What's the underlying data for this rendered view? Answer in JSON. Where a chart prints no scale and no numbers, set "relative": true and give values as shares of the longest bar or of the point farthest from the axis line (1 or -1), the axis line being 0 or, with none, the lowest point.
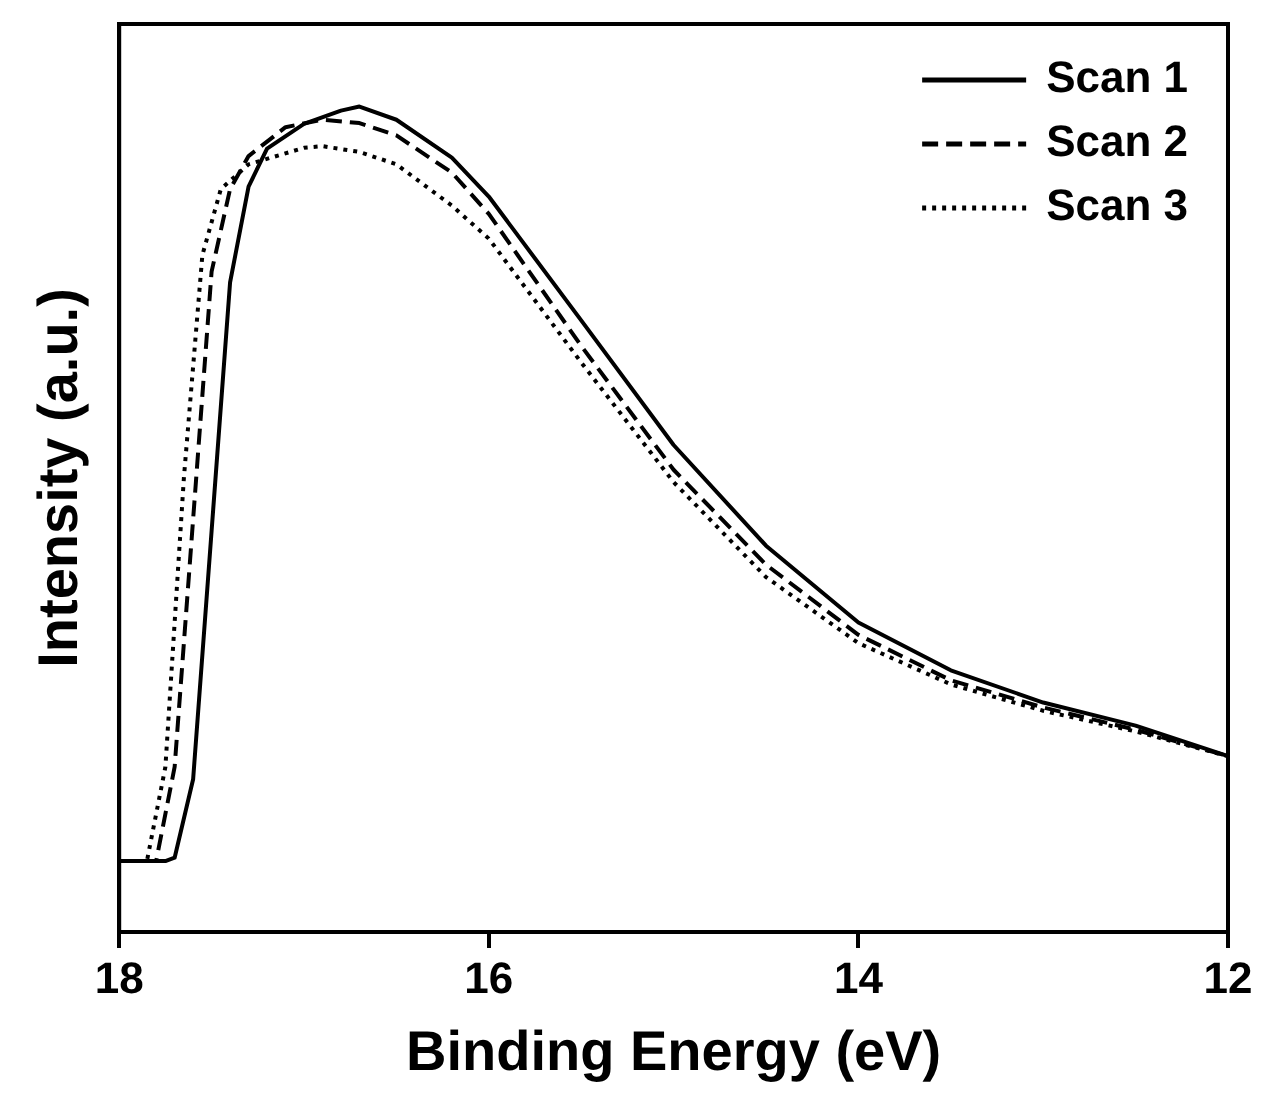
{
  "chart_data": {
    "type": "line",
    "xlabel": "Binding Energy (eV)",
    "ylabel": "Intensity (a.u.)",
    "xlim": [
      18,
      12
    ],
    "xticks": [
      18,
      16,
      14,
      12
    ],
    "relative": true,
    "legend": "top right",
    "grid": false,
    "marker": "none",
    "series": [
      {
        "name": "Scan 1",
        "color": "#000000",
        "line_style": "solid",
        "x": [
          18,
          17.75,
          17.7,
          17.6,
          17.5,
          17.4,
          17.3,
          17.2,
          17,
          16.8,
          16.7,
          16.5,
          16.2,
          16,
          15.5,
          15,
          14.5,
          14,
          13.5,
          13,
          12.5,
          12
        ],
        "values": [
          0.086,
          0.086,
          0.09,
          0.185,
          0.486,
          0.787,
          0.903,
          0.949,
          0.979,
          0.995,
          1.0,
          0.984,
          0.938,
          0.891,
          0.741,
          0.59,
          0.468,
          0.375,
          0.317,
          0.278,
          0.25,
          0.213
        ]
      },
      {
        "name": "Scan 2",
        "color": "#000000",
        "line_style": "dashed",
        "x": [
          18,
          17.8,
          17.7,
          17.6,
          17.5,
          17.4,
          17.3,
          17.1,
          16.9,
          16.7,
          16.5,
          16.2,
          16,
          15.5,
          15,
          14.5,
          14,
          13.5,
          13,
          12.5,
          12
        ],
        "values": [
          0.086,
          0.086,
          0.2,
          0.5,
          0.8,
          0.9,
          0.94,
          0.975,
          0.984,
          0.98,
          0.965,
          0.92,
          0.87,
          0.71,
          0.56,
          0.445,
          0.36,
          0.305,
          0.272,
          0.245,
          0.213
        ]
      },
      {
        "name": "Scan 3",
        "color": "#000000",
        "line_style": "dotted",
        "x": [
          18,
          17.85,
          17.75,
          17.65,
          17.55,
          17.45,
          17.3,
          17,
          16.9,
          16.7,
          16.5,
          16.2,
          16,
          15.5,
          15,
          14.5,
          14,
          13.5,
          13,
          12.5,
          12
        ],
        "values": [
          0.086,
          0.086,
          0.2,
          0.55,
          0.82,
          0.9,
          0.93,
          0.95,
          0.952,
          0.945,
          0.93,
          0.88,
          0.84,
          0.69,
          0.545,
          0.43,
          0.35,
          0.3,
          0.268,
          0.243,
          0.213
        ]
      }
    ]
  }
}
